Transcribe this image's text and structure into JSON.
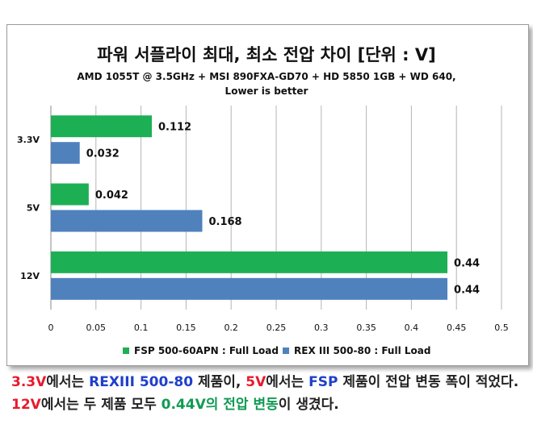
{
  "chart_data": {
    "type": "bar",
    "orientation": "horizontal",
    "title": "파워 서플라이 최대, 최소 전압 차이 [단위 : V]",
    "subtitle": [
      "AMD 1055T @ 3.5GHz + MSI 890FXA-GD70 + HD 5850 1GB + WD 640,",
      "Lower is better"
    ],
    "categories": [
      "3.3V",
      "5V",
      "12V"
    ],
    "series": [
      {
        "name": "FSP 500-60APN : Full Load",
        "color": "#1daf54",
        "values": [
          0.112,
          0.042,
          0.44
        ],
        "labels": [
          "0.112",
          "0.042",
          "0.44"
        ]
      },
      {
        "name": "REX III 500-80 : Full Load",
        "color": "#4f81bd",
        "values": [
          0.032,
          0.168,
          0.44
        ],
        "labels": [
          "0.032",
          "0.168",
          "0.44"
        ]
      }
    ],
    "xlim": [
      0,
      0.5
    ],
    "xticks": [
      "0",
      "0.05",
      "0.1",
      "0.15",
      "0.2",
      "0.25",
      "0.3",
      "0.35",
      "0.4",
      "0.45",
      "0.5"
    ],
    "grid": true,
    "legend_position": "bottom"
  },
  "caption": {
    "parts": [
      {
        "text": "3.3V",
        "style": "red"
      },
      {
        "text": "에서는 ",
        "style": "plain"
      },
      {
        "text": "REXIII 500-80",
        "style": "blue"
      },
      {
        "text": " 제품이, ",
        "style": "plain"
      },
      {
        "text": "5V",
        "style": "red"
      },
      {
        "text": "에서는 ",
        "style": "plain"
      },
      {
        "text": "FSP",
        "style": "blue"
      },
      {
        "text": " 제품이 전압 변동 폭이 적었다. ",
        "style": "plain"
      },
      {
        "text": "12V",
        "style": "red"
      },
      {
        "text": "에서는 두 제품 모두 ",
        "style": "plain"
      },
      {
        "text": "0.44V의 전압 변동",
        "style": "green"
      },
      {
        "text": "이 생겼다.",
        "style": "plain"
      }
    ]
  }
}
